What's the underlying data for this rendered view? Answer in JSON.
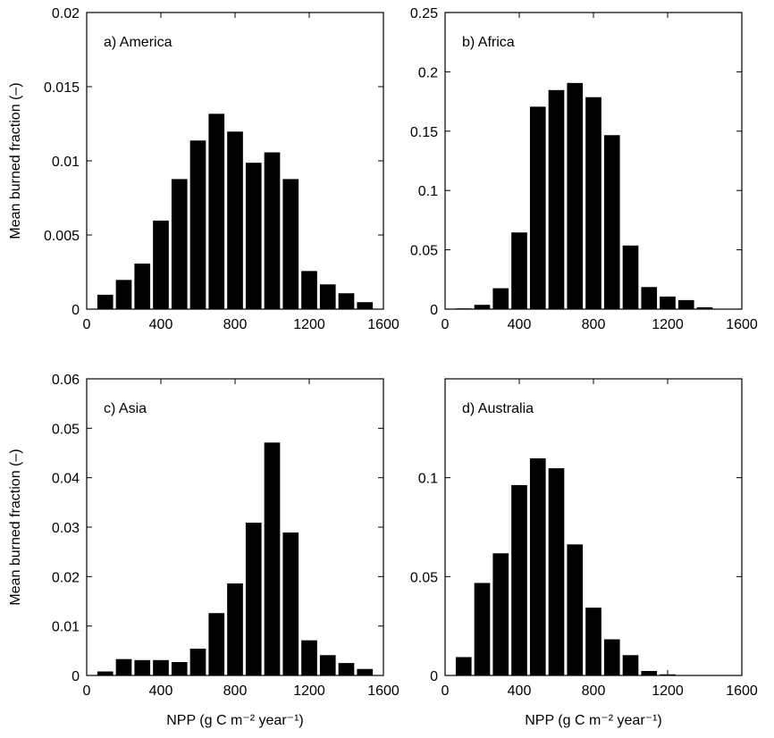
{
  "chart_data": [
    {
      "type": "bar",
      "title": "a) America",
      "xlabel": "",
      "ylabel": "Mean burned fraction (–)",
      "xlim": [
        0,
        1600
      ],
      "ylim": [
        0,
        0.02
      ],
      "xticks": [
        0,
        400,
        800,
        1200,
        1600
      ],
      "xtick_labels": [
        "0",
        "400",
        "800",
        "1200",
        "1600"
      ],
      "yticks": [
        0,
        0.005,
        0.01,
        0.015,
        0.02
      ],
      "ytick_labels": [
        "0",
        "0.005",
        "0.01",
        "0.015",
        "0.02"
      ],
      "bin_width": 100,
      "x": [
        100,
        200,
        300,
        400,
        500,
        600,
        700,
        800,
        900,
        1000,
        1100,
        1200,
        1300,
        1400,
        1500
      ],
      "values": [
        0.001,
        0.002,
        0.0031,
        0.006,
        0.0088,
        0.0114,
        0.0132,
        0.012,
        0.0099,
        0.0106,
        0.0088,
        0.0026,
        0.0017,
        0.0011,
        0.0005
      ]
    },
    {
      "type": "bar",
      "title": "b) Africa",
      "xlabel": "",
      "ylabel": "",
      "xlim": [
        0,
        1600
      ],
      "ylim": [
        0,
        0.25
      ],
      "xticks": [
        0,
        400,
        800,
        1200,
        1600
      ],
      "xtick_labels": [
        "0",
        "400",
        "800",
        "1200",
        "1600"
      ],
      "yticks": [
        0,
        0.05,
        0.1,
        0.15,
        0.2,
        0.25
      ],
      "ytick_labels": [
        "0",
        "0.05",
        "0.1",
        "0.15",
        "0.2",
        "0.25"
      ],
      "bin_width": 100,
      "x": [
        100,
        200,
        300,
        400,
        500,
        600,
        700,
        800,
        900,
        1000,
        1100,
        1200,
        1300,
        1400,
        1500
      ],
      "values": [
        0.001,
        0.004,
        0.018,
        0.065,
        0.171,
        0.185,
        0.191,
        0.179,
        0.147,
        0.054,
        0.019,
        0.011,
        0.008,
        0.002,
        0.0
      ]
    },
    {
      "type": "bar",
      "title": "c) Asia",
      "xlabel": "NPP (g C m⁻² year⁻¹)",
      "ylabel": "Mean burned fraction (–)",
      "xlim": [
        0,
        1600
      ],
      "ylim": [
        0,
        0.06
      ],
      "xticks": [
        0,
        400,
        800,
        1200,
        1600
      ],
      "xtick_labels": [
        "0",
        "400",
        "800",
        "1200",
        "1600"
      ],
      "yticks": [
        0,
        0.01,
        0.02,
        0.03,
        0.04,
        0.05,
        0.06
      ],
      "ytick_labels": [
        "0",
        "0.01",
        "0.02",
        "0.03",
        "0.04",
        "0.05",
        "0.06"
      ],
      "bin_width": 100,
      "x": [
        100,
        200,
        300,
        400,
        500,
        600,
        700,
        800,
        900,
        1000,
        1100,
        1200,
        1300,
        1400,
        1500
      ],
      "values": [
        0.0009,
        0.0034,
        0.0032,
        0.0032,
        0.0028,
        0.0055,
        0.0127,
        0.0187,
        0.031,
        0.0472,
        0.029,
        0.0072,
        0.0042,
        0.0026,
        0.0014
      ]
    },
    {
      "type": "bar",
      "title": "d) Australia",
      "xlabel": "NPP (g C m⁻² year⁻¹)",
      "ylabel": "",
      "xlim": [
        0,
        1600
      ],
      "ylim": [
        0,
        0.15
      ],
      "xticks": [
        0,
        400,
        800,
        1200,
        1600
      ],
      "xtick_labels": [
        "0",
        "400",
        "800",
        "1200",
        "1600"
      ],
      "yticks": [
        0,
        0.05,
        0.1
      ],
      "ytick_labels": [
        "0",
        "0.05",
        "0.1"
      ],
      "bin_width": 100,
      "x": [
        100,
        200,
        300,
        400,
        500,
        600,
        700,
        800,
        900,
        1000,
        1100,
        1200,
        1300,
        1400,
        1500
      ],
      "values": [
        0.0095,
        0.047,
        0.062,
        0.0965,
        0.11,
        0.105,
        0.0665,
        0.0345,
        0.0185,
        0.0105,
        0.0025,
        0.0008,
        0.0,
        0.0,
        0.0
      ]
    }
  ]
}
